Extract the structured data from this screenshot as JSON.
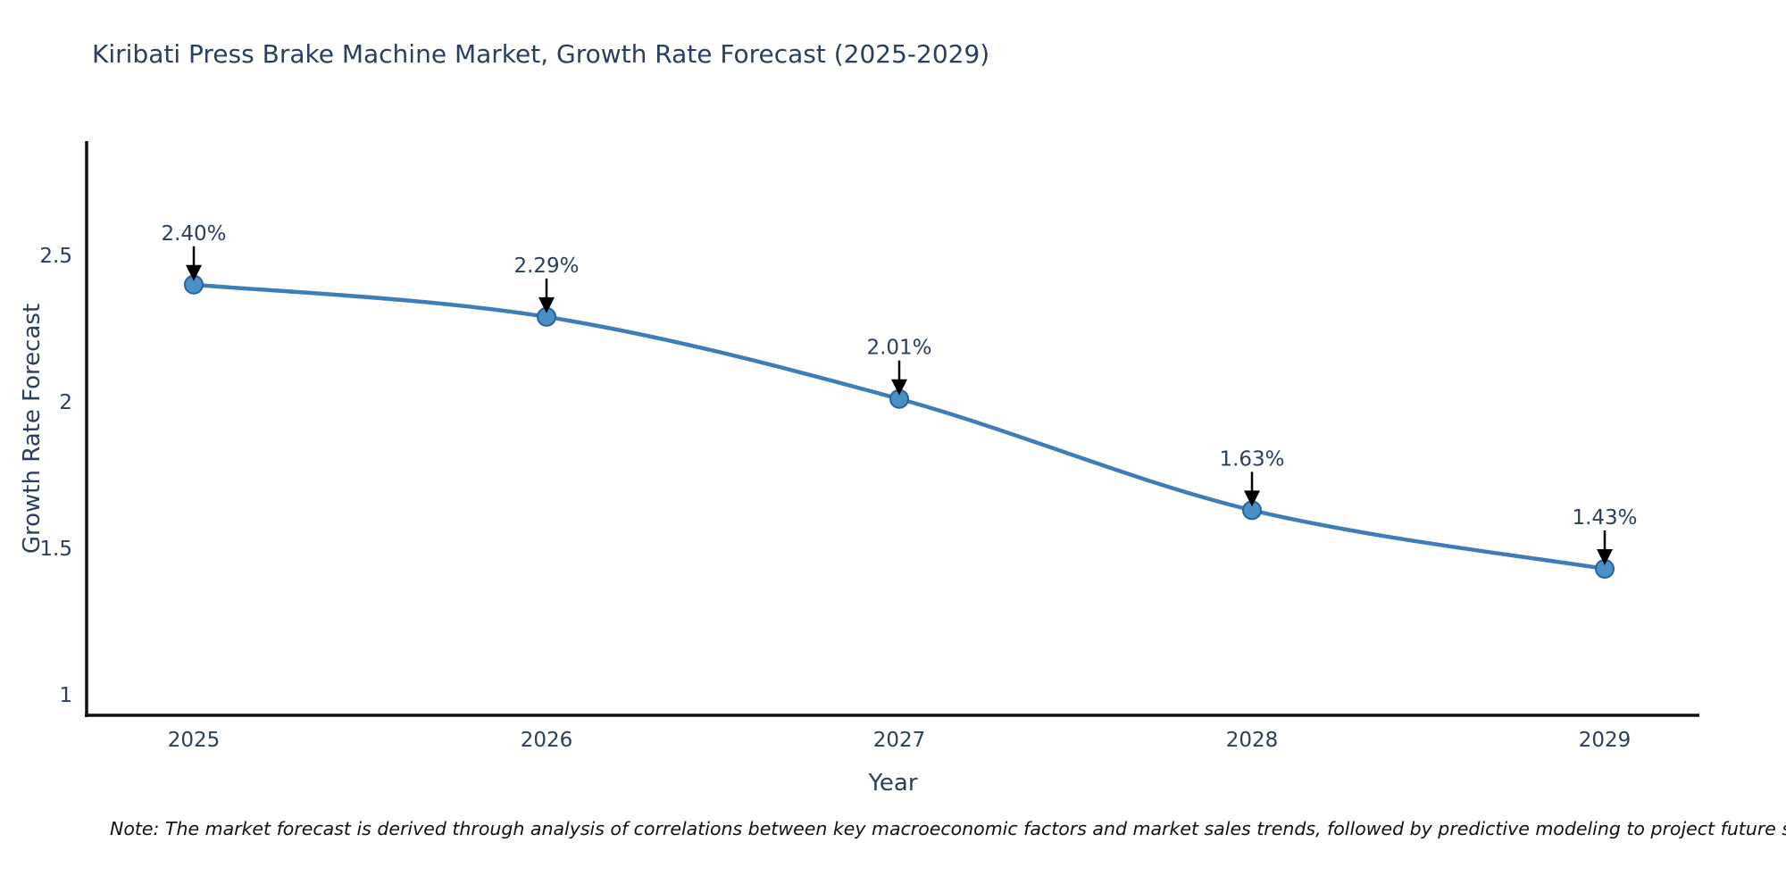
{
  "title": {
    "text": "Kiribati Press Brake Machine Market, Growth Rate Forecast (2025-2029)",
    "color": "#2a3f5f"
  },
  "note": {
    "text": "Note: The market forecast is derived through analysis of correlations between key macroeconomic factors and market sales trends, followed by predictive modeling to project future sales"
  },
  "chart_data": {
    "type": "line",
    "line_shape": "spline",
    "title": "Kiribati Press Brake Machine Market, Growth Rate Forecast (2025-2029)",
    "categories": [
      "2025",
      "2026",
      "2027",
      "2028",
      "2029"
    ],
    "series": [
      {
        "name": "Growth Rate Forecast",
        "values": [
          2.4,
          2.29,
          2.01,
          1.63,
          1.43
        ]
      }
    ],
    "point_labels": [
      "2.40%",
      "2.29%",
      "2.01%",
      "1.63%",
      "1.43%"
    ],
    "xlabel": "Year",
    "ylabel": "Growth Rate Forecast",
    "yticks": [
      {
        "value": 1,
        "label": "1"
      },
      {
        "value": 1.5,
        "label": "1.5"
      },
      {
        "value": 2,
        "label": "2"
      },
      {
        "value": 2.5,
        "label": "2.5"
      }
    ],
    "ylim": [
      0.93,
      2.89
    ],
    "grid": false,
    "legend": "none",
    "colors": {
      "line": "#3f7db8",
      "marker_fill": "#4790c8",
      "marker_stroke": "#2a6496",
      "axis_line": "#101010",
      "tick_text": "#2a3f5f",
      "annotation_text": "#2a3f5f",
      "annotation_arrow": "#000000",
      "background": "#ffffff"
    }
  }
}
